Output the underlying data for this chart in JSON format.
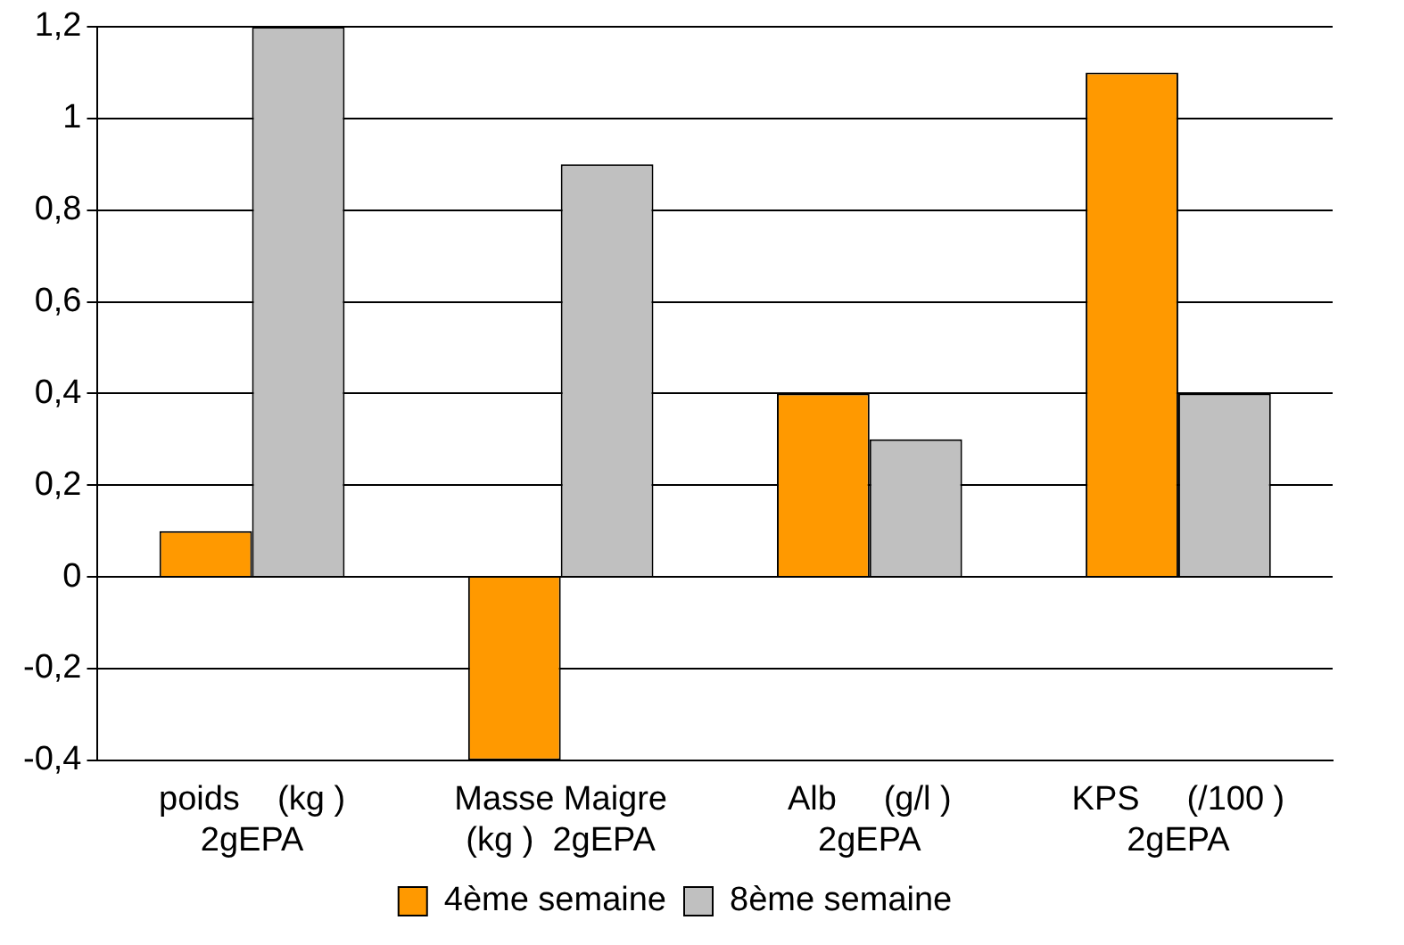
{
  "chart_data": {
    "type": "bar",
    "categories": [
      "poids    (kg )\n2gEPA",
      "Masse Maigre\n(kg )  2gEPA",
      "Alb     (g/l )\n2gEPA",
      "KPS     (/100 )\n2gEPA"
    ],
    "series": [
      {
        "name": "4ème semaine",
        "color": "#ff9900",
        "values": [
          0.1,
          -0.4,
          0.4,
          1.1
        ]
      },
      {
        "name": "8ème semaine",
        "color": "#c0c0c0",
        "values": [
          1.2,
          0.9,
          0.3,
          0.4
        ]
      }
    ],
    "ylim": [
      -0.4,
      1.2
    ],
    "yticks": [
      {
        "value": -0.4,
        "label": "-0,4"
      },
      {
        "value": -0.2,
        "label": "-0,2"
      },
      0,
      {
        "value": 0.2,
        "label": "0,2"
      },
      {
        "value": 0.4,
        "label": "0,4"
      },
      {
        "value": 0.6,
        "label": "0,6"
      },
      {
        "value": 0.8,
        "label": "0,8"
      },
      1,
      {
        "value": 1.2,
        "label": "1,2"
      }
    ],
    "grid": "y",
    "legend": "bottom"
  }
}
